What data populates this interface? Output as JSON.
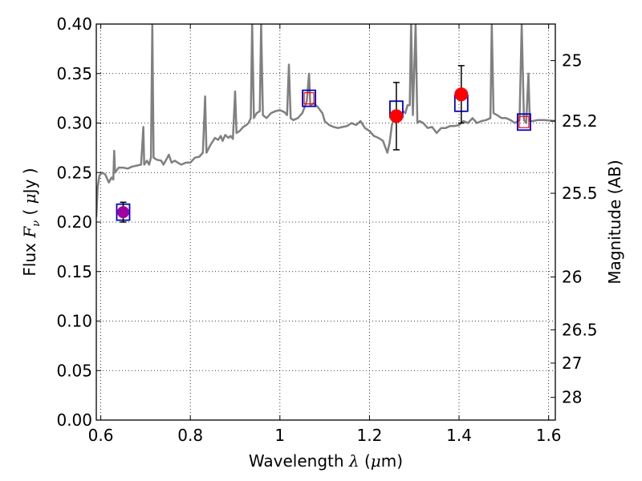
{
  "chart_data": {
    "type": "scatter",
    "xlabel_main": "Wavelength",
    "xlabel_symbol": "λ",
    "xlabel_unit_open": "(",
    "xlabel_unit_mu": "μ",
    "xlabel_unit_rest": "m)",
    "ylabel_main": "Flux",
    "ylabel_symbol": "F",
    "ylabel_sub": "ν",
    "ylabel_unit_open": "(",
    "ylabel_unit_mu": "μ",
    "ylabel_unit_rest": "Jy )",
    "y2label": "Magnitude (AB)",
    "xlim": [
      0.59,
      1.615
    ],
    "ylim": [
      0.0,
      0.4
    ],
    "grid": true,
    "x_ticks": [
      "0.6",
      "0.8",
      "1",
      "1.2",
      "1.4",
      "1.6"
    ],
    "x_tick_values": [
      0.6,
      0.8,
      1.0,
      1.2,
      1.4,
      1.6
    ],
    "y_ticks": [
      "0.00",
      "0.05",
      "0.10",
      "0.15",
      "0.20",
      "0.25",
      "0.30",
      "0.35",
      "0.40"
    ],
    "y_tick_values": [
      0,
      0.05,
      0.1,
      0.15,
      0.2,
      0.25,
      0.3,
      0.35,
      0.4
    ],
    "mag_ticks": [
      "25",
      "25.2",
      "25.5",
      "26",
      "26.5",
      "27",
      "28"
    ],
    "mag_tick_values": [
      25,
      25.2,
      25.5,
      26,
      26.5,
      27,
      28
    ],
    "colors": {
      "spectrum": "#808080",
      "observed": "#ff0000",
      "model_box": "#0000cc",
      "model_box_inner": "#ff0000",
      "error_bar": "#000000",
      "first_point": "#a000a0"
    },
    "spectrum": [
      [
        0.59,
        0.205
      ],
      [
        0.593,
        0.235
      ],
      [
        0.597,
        0.247
      ],
      [
        0.603,
        0.25
      ],
      [
        0.61,
        0.248
      ],
      [
        0.618,
        0.24
      ],
      [
        0.624,
        0.245
      ],
      [
        0.628,
        0.243
      ],
      [
        0.63,
        0.272
      ],
      [
        0.632,
        0.25
      ],
      [
        0.64,
        0.255
      ],
      [
        0.65,
        0.255
      ],
      [
        0.66,
        0.254
      ],
      [
        0.67,
        0.256
      ],
      [
        0.68,
        0.257
      ],
      [
        0.69,
        0.258
      ],
      [
        0.695,
        0.296
      ],
      [
        0.697,
        0.258
      ],
      [
        0.703,
        0.262
      ],
      [
        0.708,
        0.258
      ],
      [
        0.712,
        0.265
      ],
      [
        0.715,
        0.4
      ],
      [
        0.718,
        0.265
      ],
      [
        0.725,
        0.263
      ],
      [
        0.735,
        0.262
      ],
      [
        0.74,
        0.258
      ],
      [
        0.745,
        0.262
      ],
      [
        0.752,
        0.268
      ],
      [
        0.758,
        0.26
      ],
      [
        0.765,
        0.262
      ],
      [
        0.772,
        0.26
      ],
      [
        0.78,
        0.258
      ],
      [
        0.79,
        0.26
      ],
      [
        0.8,
        0.26
      ],
      [
        0.81,
        0.265
      ],
      [
        0.82,
        0.266
      ],
      [
        0.828,
        0.27
      ],
      [
        0.833,
        0.327
      ],
      [
        0.836,
        0.27
      ],
      [
        0.845,
        0.278
      ],
      [
        0.855,
        0.285
      ],
      [
        0.862,
        0.283
      ],
      [
        0.868,
        0.287
      ],
      [
        0.872,
        0.282
      ],
      [
        0.878,
        0.288
      ],
      [
        0.885,
        0.285
      ],
      [
        0.89,
        0.287
      ],
      [
        0.895,
        0.284
      ],
      [
        0.9,
        0.332
      ],
      [
        0.903,
        0.29
      ],
      [
        0.91,
        0.292
      ],
      [
        0.918,
        0.296
      ],
      [
        0.925,
        0.298
      ],
      [
        0.93,
        0.3
      ],
      [
        0.935,
        0.305
      ],
      [
        0.938,
        0.4
      ],
      [
        0.942,
        0.305
      ],
      [
        0.948,
        0.31
      ],
      [
        0.955,
        0.312
      ],
      [
        0.958,
        0.4
      ],
      [
        0.962,
        0.308
      ],
      [
        0.97,
        0.305
      ],
      [
        0.98,
        0.31
      ],
      [
        0.99,
        0.312
      ],
      [
        1.0,
        0.313
      ],
      [
        1.01,
        0.311
      ],
      [
        1.016,
        0.308
      ],
      [
        1.02,
        0.359
      ],
      [
        1.024,
        0.305
      ],
      [
        1.03,
        0.303
      ],
      [
        1.04,
        0.305
      ],
      [
        1.05,
        0.31
      ],
      [
        1.06,
        0.322
      ],
      [
        1.065,
        0.35
      ],
      [
        1.068,
        0.318
      ],
      [
        1.075,
        0.32
      ],
      [
        1.085,
        0.316
      ],
      [
        1.095,
        0.31
      ],
      [
        1.1,
        0.302
      ],
      [
        1.11,
        0.298
      ],
      [
        1.12,
        0.296
      ],
      [
        1.13,
        0.295
      ],
      [
        1.14,
        0.296
      ],
      [
        1.15,
        0.297
      ],
      [
        1.16,
        0.3
      ],
      [
        1.17,
        0.298
      ],
      [
        1.18,
        0.302
      ],
      [
        1.19,
        0.295
      ],
      [
        1.2,
        0.292
      ],
      [
        1.21,
        0.287
      ],
      [
        1.22,
        0.285
      ],
      [
        1.23,
        0.282
      ],
      [
        1.24,
        0.27
      ],
      [
        1.245,
        0.28
      ],
      [
        1.25,
        0.298
      ],
      [
        1.255,
        0.305
      ],
      [
        1.26,
        0.305
      ],
      [
        1.265,
        0.308
      ],
      [
        1.27,
        0.308
      ],
      [
        1.275,
        0.312
      ],
      [
        1.28,
        0.31
      ],
      [
        1.285,
        0.318
      ],
      [
        1.29,
        0.318
      ],
      [
        1.293,
        0.4
      ],
      [
        1.297,
        0.308
      ],
      [
        1.303,
        0.4
      ],
      [
        1.307,
        0.3
      ],
      [
        1.312,
        0.302
      ],
      [
        1.32,
        0.3
      ],
      [
        1.33,
        0.295
      ],
      [
        1.34,
        0.296
      ],
      [
        1.35,
        0.29
      ],
      [
        1.36,
        0.295
      ],
      [
        1.37,
        0.295
      ],
      [
        1.38,
        0.297
      ],
      [
        1.39,
        0.297
      ],
      [
        1.4,
        0.298
      ],
      [
        1.41,
        0.302
      ],
      [
        1.42,
        0.3
      ],
      [
        1.43,
        0.305
      ],
      [
        1.44,
        0.3
      ],
      [
        1.45,
        0.302
      ],
      [
        1.46,
        0.303
      ],
      [
        1.47,
        0.305
      ],
      [
        1.473,
        0.4
      ],
      [
        1.477,
        0.31
      ],
      [
        1.485,
        0.308
      ],
      [
        1.495,
        0.305
      ],
      [
        1.505,
        0.305
      ],
      [
        1.515,
        0.303
      ],
      [
        1.525,
        0.3
      ],
      [
        1.535,
        0.303
      ],
      [
        1.54,
        0.4
      ],
      [
        1.545,
        0.303
      ],
      [
        1.55,
        0.3
      ],
      [
        1.555,
        0.35
      ],
      [
        1.558,
        0.302
      ],
      [
        1.565,
        0.302
      ],
      [
        1.575,
        0.303
      ],
      [
        1.59,
        0.303
      ],
      [
        1.615,
        0.302
      ]
    ],
    "observed": [
      {
        "x": 0.65,
        "y": 0.21,
        "yerr": 0.01
      },
      {
        "x": 1.26,
        "y": 0.307,
        "yerr": 0.034
      },
      {
        "x": 1.405,
        "y": 0.329,
        "yerr": 0.029
      }
    ],
    "model": [
      {
        "x": 0.65,
        "y": 0.21,
        "inner": false
      },
      {
        "x": 1.065,
        "y": 0.325,
        "inner": true
      },
      {
        "x": 1.26,
        "y": 0.314,
        "inner": false
      },
      {
        "x": 1.405,
        "y": 0.32,
        "inner": false
      },
      {
        "x": 1.545,
        "y": 0.301,
        "inner": true
      }
    ]
  }
}
